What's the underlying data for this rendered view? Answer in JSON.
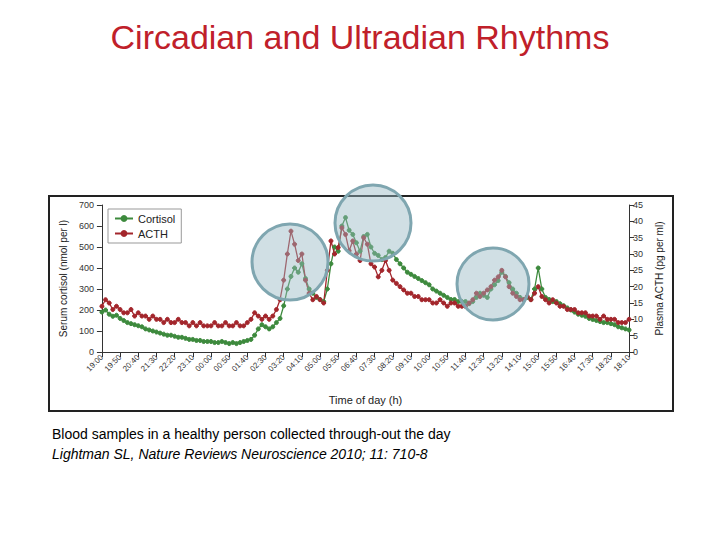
{
  "chart_data": {
    "type": "line",
    "title": "Circadian and Ultradian Rhythms",
    "annotations": [
      "Blood samples in a healthy person collected through-out the day",
      "Lightman SL, Nature Reviews Neuroscience 2010; 11: 710-8"
    ],
    "x_label": "Time of day (h)",
    "y_label": "Serum cortisol (nmol per l)",
    "y2_label": "Plasma ACTH (pg per ml)",
    "categories": [
      "19:00",
      null,
      null,
      null,
      null,
      "19:50",
      null,
      null,
      null,
      null,
      "20:40",
      null,
      null,
      null,
      null,
      "21:30",
      null,
      null,
      null,
      null,
      "22:20",
      null,
      null,
      null,
      null,
      "23:10",
      null,
      null,
      null,
      null,
      "00:00",
      null,
      null,
      null,
      null,
      "00:50",
      null,
      null,
      null,
      null,
      "01:40",
      null,
      null,
      null,
      null,
      "02:30",
      null,
      null,
      null,
      null,
      "03:20",
      null,
      null,
      null,
      null,
      "04:10",
      null,
      null,
      null,
      null,
      "05:00",
      null,
      null,
      null,
      null,
      "05:50",
      null,
      null,
      null,
      null,
      "06:40",
      null,
      null,
      null,
      null,
      "07:30",
      null,
      null,
      null,
      null,
      "08:20",
      null,
      null,
      null,
      null,
      "09:10",
      null,
      null,
      null,
      null,
      "10:00",
      null,
      null,
      null,
      null,
      "10:50",
      null,
      null,
      null,
      null,
      "11:40",
      null,
      null,
      null,
      null,
      "12:30",
      null,
      null,
      null,
      null,
      "13:20",
      null,
      null,
      null,
      null,
      "14:10",
      null,
      null,
      null,
      null,
      "15:00",
      null,
      null,
      null,
      null,
      "15:50",
      null,
      null,
      null,
      null,
      "16:40",
      null,
      null,
      null,
      null,
      "17:30",
      null,
      null,
      null,
      null,
      "18:20",
      null,
      null,
      null,
      null,
      "18:10"
    ],
    "series": [
      {
        "name": "Cortisol",
        "color": "#3d8a3d",
        "marker": "circle",
        "values": [
          190,
          200,
          180,
          170,
          175,
          160,
          150,
          140,
          135,
          130,
          125,
          120,
          110,
          105,
          100,
          95,
          90,
          85,
          80,
          80,
          75,
          70,
          70,
          65,
          60,
          60,
          55,
          55,
          50,
          50,
          50,
          45,
          45,
          50,
          45,
          40,
          45,
          40,
          45,
          50,
          55,
          60,
          80,
          110,
          130,
          120,
          110,
          120,
          140,
          160,
          220,
          300,
          360,
          400,
          380,
          420,
          350,
          300,
          280,
          260,
          250,
          240,
          300,
          420,
          500,
          480,
          600,
          640,
          580,
          560,
          520,
          480,
          550,
          560,
          500,
          470,
          460,
          440,
          450,
          480,
          470,
          440,
          420,
          400,
          380,
          370,
          360,
          350,
          340,
          330,
          320,
          300,
          290,
          280,
          270,
          260,
          250,
          250,
          240,
          240,
          240,
          230,
          240,
          260,
          280,
          270,
          260,
          300,
          320,
          340,
          380,
          360,
          330,
          300,
          280,
          260,
          250,
          260,
          250,
          300,
          400,
          300,
          260,
          250,
          240,
          240,
          230,
          220,
          210,
          200,
          190,
          180,
          175,
          170,
          160,
          155,
          150,
          145,
          140,
          140,
          135,
          130,
          120,
          115,
          110,
          105
        ]
      },
      {
        "name": "ACTH",
        "color": "#a3262c",
        "marker": "circle",
        "axis": "y2",
        "values": [
          14,
          16,
          15,
          13,
          14,
          13,
          12,
          12,
          13,
          11,
          12,
          11,
          11,
          10,
          11,
          10,
          10,
          9,
          10,
          9,
          9,
          10,
          9,
          9,
          8,
          9,
          8,
          9,
          8,
          8,
          8,
          9,
          8,
          8,
          9,
          8,
          8,
          9,
          8,
          8,
          9,
          10,
          12,
          11,
          10,
          11,
          10,
          11,
          13,
          16,
          22,
          30,
          37,
          33,
          28,
          30,
          22,
          18,
          16,
          17,
          16,
          15,
          25,
          34,
          30,
          32,
          38,
          36,
          31,
          34,
          30,
          28,
          35,
          33,
          27,
          26,
          23,
          25,
          28,
          25,
          22,
          21,
          20,
          19,
          18,
          18,
          17,
          17,
          16,
          16,
          16,
          15,
          15,
          16,
          15,
          14,
          15,
          15,
          14,
          14,
          14,
          15,
          16,
          18,
          17,
          18,
          19,
          20,
          22,
          23,
          25,
          23,
          20,
          18,
          17,
          16,
          16,
          17,
          16,
          18,
          20,
          17,
          16,
          15,
          16,
          15,
          14,
          14,
          13,
          13,
          13,
          12,
          12,
          12,
          11,
          11,
          11,
          10,
          11,
          10,
          10,
          10,
          9,
          9,
          9,
          10
        ]
      }
    ],
    "ylim": [
      0,
      700
    ],
    "yticks": [
      0,
      100,
      200,
      300,
      400,
      500,
      600,
      700
    ],
    "y2lim": [
      0,
      45
    ],
    "y2ticks": [
      0,
      5,
      10,
      15,
      20,
      25,
      30,
      35,
      40,
      45
    ],
    "grid": false,
    "legend": "upper left"
  }
}
